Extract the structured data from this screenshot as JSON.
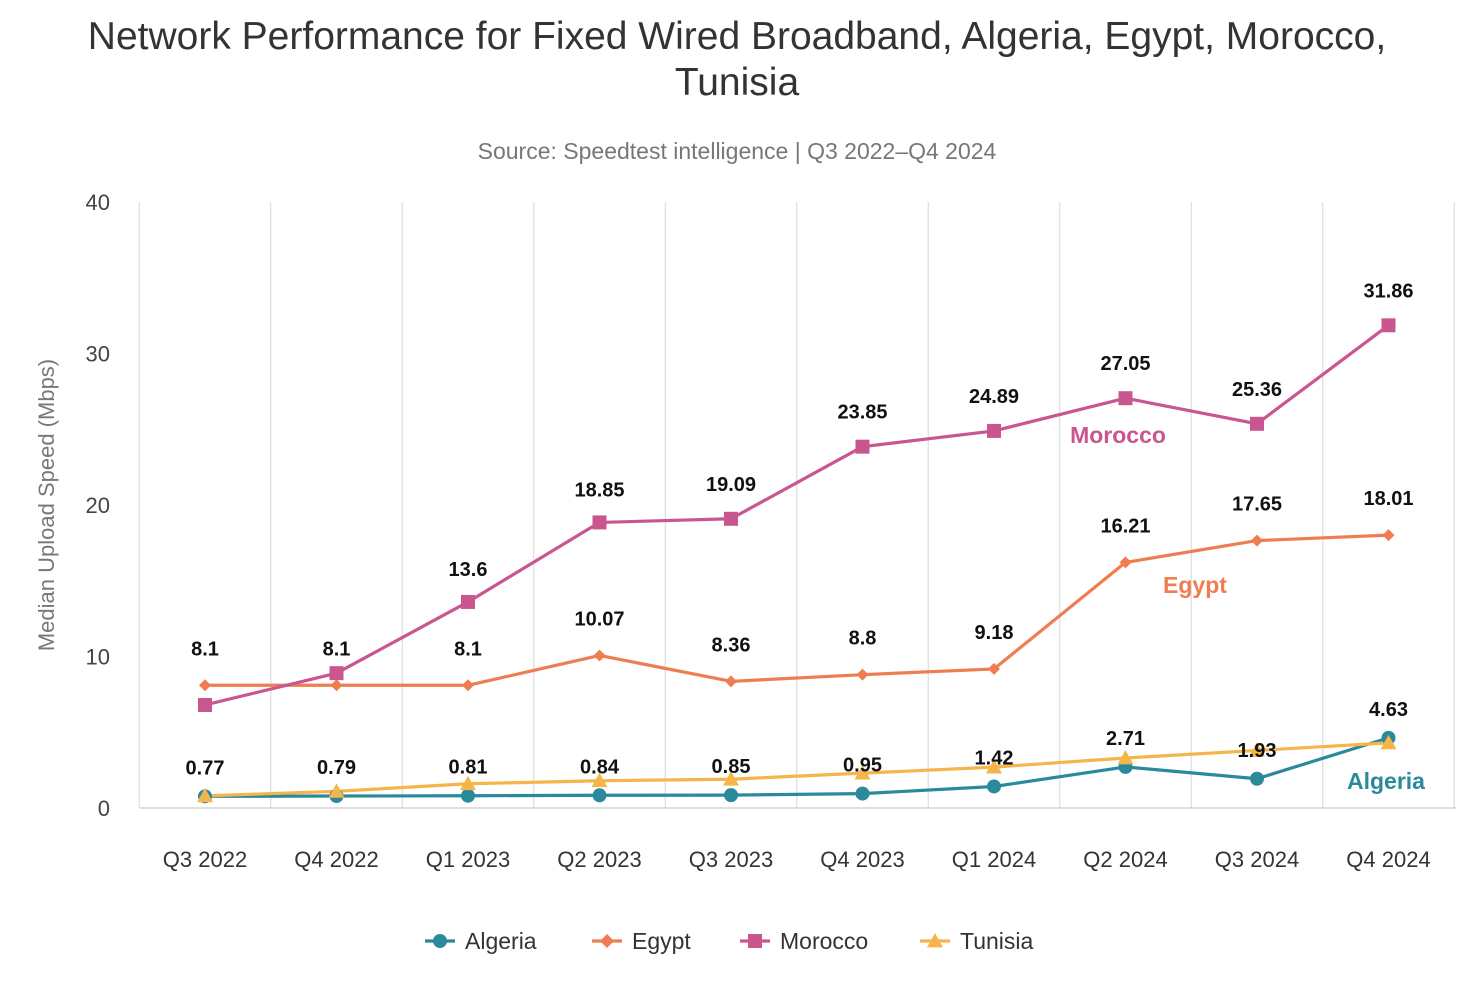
{
  "title": "Network Performance for Fixed Wired Broadband, Algeria, Egypt, Morocco, Tunisia",
  "subtitle": "Source: Speedtest intelligence | Q3 2022–Q4 2024",
  "chart_data": {
    "type": "line",
    "title": "Network Performance for Fixed Wired Broadband, Algeria, Egypt, Morocco, Tunisia",
    "subtitle": "Source: Speedtest intelligence | Q3 2022–Q4 2024",
    "xlabel": "",
    "ylabel": "Median Upload Speed (Mbps)",
    "ylim": [
      0,
      40
    ],
    "yticks": [
      "0",
      "10",
      "20",
      "30",
      "40"
    ],
    "categories": [
      "Q3 2022",
      "Q4 2022",
      "Q1 2023",
      "Q2 2023",
      "Q3 2023",
      "Q4 2023",
      "Q1 2024",
      "Q2 2024",
      "Q3 2024",
      "Q4 2024"
    ],
    "grid": "vertical",
    "legend_position": "bottom",
    "series": [
      {
        "name": "Algeria",
        "color": "#2a8a9c",
        "marker": "circle",
        "values": [
          0.77,
          0.79,
          0.81,
          0.84,
          0.85,
          0.95,
          1.42,
          2.71,
          1.93,
          4.63
        ],
        "labels": [
          "0.77",
          "0.79",
          "0.81",
          "0.84",
          "0.85",
          "0.95",
          "1.42",
          "2.71",
          "1.93",
          "4.63"
        ],
        "end_label": "Algeria"
      },
      {
        "name": "Egypt",
        "color": "#ef7d52",
        "marker": "diamond",
        "values": [
          8.1,
          8.1,
          8.1,
          10.07,
          8.36,
          8.8,
          9.18,
          16.21,
          17.65,
          18.01
        ],
        "labels": [
          "8.1",
          "8.1",
          "8.1",
          "10.07",
          "8.36",
          "8.8",
          "9.18",
          "16.21",
          "17.65",
          "18.01"
        ],
        "end_label": "Egypt"
      },
      {
        "name": "Morocco",
        "color": "#c9568f",
        "marker": "square",
        "values": [
          6.8,
          8.9,
          13.6,
          18.85,
          19.09,
          23.85,
          24.89,
          27.05,
          25.36,
          31.86
        ],
        "labels": [
          "",
          "",
          "13.6",
          "18.85",
          "19.09",
          "23.85",
          "24.89",
          "27.05",
          "25.36",
          "31.86"
        ],
        "end_label": "Morocco"
      },
      {
        "name": "Tunisia",
        "color": "#f5b54a",
        "marker": "triangle",
        "values": [
          0.8,
          1.1,
          1.6,
          1.8,
          1.9,
          2.3,
          2.7,
          3.3,
          3.8,
          4.3
        ],
        "labels": [
          "",
          "",
          "",
          "",
          "",
          "",
          "",
          "",
          "",
          ""
        ],
        "end_label": ""
      }
    ]
  }
}
